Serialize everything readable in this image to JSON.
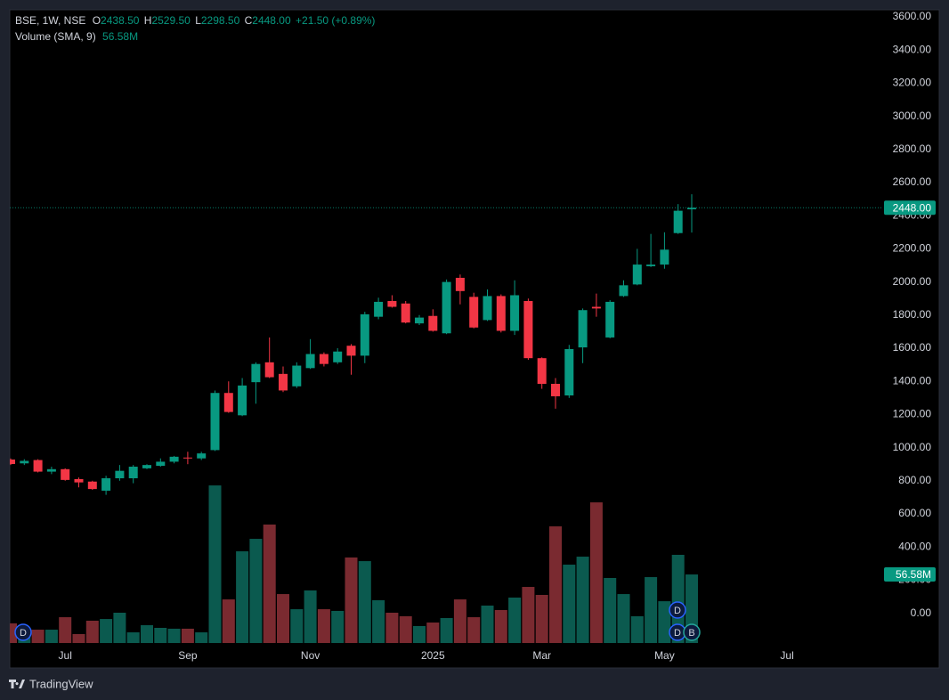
{
  "chart_data": {
    "type": "candlestick",
    "header": {
      "symbol": "BSE, 1W, NSE",
      "o_label": "O",
      "o": "2438.50",
      "h_label": "H",
      "h": "2529.50",
      "l_label": "L",
      "l": "2298.50",
      "c_label": "C",
      "c": "2448.00",
      "change": "+21.50 (+0.89%)"
    },
    "volume_title": "Volume (SMA, 9)",
    "volume_value": "56.58M",
    "last_price_label": "2448.00",
    "categories": [
      null,
      null,
      null,
      null,
      "Jul",
      null,
      null,
      null,
      null,
      null,
      null,
      null,
      null,
      "Sep",
      null,
      null,
      null,
      null,
      null,
      null,
      null,
      null,
      "Nov",
      null,
      null,
      null,
      null,
      null,
      null,
      null,
      null,
      "2025",
      null,
      null,
      null,
      null,
      null,
      null,
      null,
      "Mar",
      null,
      null,
      null,
      null,
      null,
      null,
      null,
      null,
      "May",
      null,
      null,
      null,
      null,
      null,
      null,
      null,
      null,
      "Jul"
    ],
    "open": [
      928,
      905,
      925,
      855,
      870,
      810,
      795,
      740,
      815,
      815,
      875,
      890,
      915,
      940,
      935,
      985,
      1330,
      1195,
      1395,
      1515,
      1445,
      1370,
      1480,
      1565,
      1515,
      1615,
      1555,
      1790,
      1885,
      1870,
      1750,
      1795,
      1690,
      2025,
      1910,
      1770,
      1915,
      1705,
      1885,
      1540,
      1385,
      1315,
      1605,
      1850,
      1665,
      1915,
      1985,
      2095,
      2105,
      2295,
      2438.5,
      null,
      null,
      null,
      null,
      null,
      null,
      null
    ],
    "high": [
      935,
      930,
      930,
      885,
      875,
      820,
      800,
      830,
      895,
      895,
      900,
      935,
      950,
      975,
      975,
      1345,
      1400,
      1420,
      1515,
      1665,
      1490,
      1515,
      1655,
      1575,
      1600,
      1625,
      1820,
      1905,
      1920,
      1885,
      1800,
      1835,
      2015,
      2045,
      1935,
      1955,
      1925,
      2010,
      1900,
      1545,
      1420,
      1620,
      1840,
      1930,
      1890,
      2010,
      2200,
      2290,
      2300,
      2470,
      2529.5,
      null,
      null,
      null,
      null,
      null,
      null,
      null
    ],
    "low": [
      895,
      895,
      850,
      840,
      800,
      760,
      745,
      715,
      800,
      785,
      870,
      885,
      905,
      900,
      925,
      980,
      1210,
      1190,
      1265,
      1420,
      1335,
      1360,
      1475,
      1490,
      1505,
      1440,
      1510,
      1775,
      1845,
      1750,
      1740,
      1700,
      1685,
      1865,
      1720,
      1765,
      1695,
      1680,
      1530,
      1355,
      1235,
      1300,
      1510,
      1790,
      1660,
      1910,
      1980,
      2090,
      2080,
      2290,
      2298.5,
      null,
      null,
      null,
      null,
      null,
      null,
      null
    ],
    "close": [
      901,
      920,
      855,
      870,
      805,
      790,
      750,
      815,
      860,
      885,
      895,
      915,
      945,
      935,
      965,
      1330,
      1215,
      1375,
      1505,
      1425,
      1345,
      1495,
      1565,
      1505,
      1580,
      1555,
      1805,
      1880,
      1850,
      1755,
      1785,
      1705,
      2000,
      1945,
      1725,
      1915,
      1705,
      1920,
      1540,
      1385,
      1310,
      1595,
      1830,
      1840,
      1880,
      1980,
      2105,
      2105,
      2195,
      2430,
      2448,
      null,
      null,
      null,
      null,
      null,
      null,
      null
    ],
    "volume": [
      16.2,
      8.1,
      11.0,
      11.0,
      21.3,
      7.4,
      18.4,
      19.8,
      25.0,
      8.8,
      14.7,
      12.5,
      11.8,
      11.8,
      8.8,
      130.1,
      36.0,
      75.7,
      86.0,
      97.8,
      40.4,
      27.9,
      43.4,
      27.9,
      26.5,
      70.6,
      67.6,
      35.3,
      25.0,
      22.1,
      14.0,
      16.9,
      20.6,
      36.0,
      21.3,
      30.9,
      27.2,
      37.5,
      46.3,
      39.7,
      96.3,
      64.7,
      71.3,
      116.1,
      53.7,
      40.4,
      22.1,
      54.4,
      34.5,
      72.8,
      56.58,
      null,
      null,
      null,
      null,
      null,
      null,
      null
    ],
    "up_color": "#089981",
    "down_color": "#f23645",
    "volume_up_color": "#0b5a4f",
    "volume_down_color": "#7a2a30",
    "ylim": [
      -330,
      3643
    ],
    "yticks": [
      {
        "value": 0,
        "label": "0.00"
      },
      {
        "value": 200,
        "label": "200.00"
      },
      {
        "value": 400,
        "label": "400.00"
      },
      {
        "value": 600,
        "label": "600.00"
      },
      {
        "value": 800,
        "label": "800.00"
      },
      {
        "value": 1000,
        "label": "1000.00"
      },
      {
        "value": 1200,
        "label": "1200.00"
      },
      {
        "value": 1400,
        "label": "1400.00"
      },
      {
        "value": 1600,
        "label": "1600.00"
      },
      {
        "value": 1800,
        "label": "1800.00"
      },
      {
        "value": 2000,
        "label": "2000.00"
      },
      {
        "value": 2200,
        "label": "2200.00"
      },
      {
        "value": 2400,
        "label": "2400.00"
      },
      {
        "value": 2600,
        "label": "2600.00"
      },
      {
        "value": 2800,
        "label": "2800.00"
      },
      {
        "value": 3000,
        "label": "3000.00"
      },
      {
        "value": 3200,
        "label": "3200.00"
      },
      {
        "value": 3400,
        "label": "3400.00"
      },
      {
        "value": 3600,
        "label": "3600.00"
      }
    ],
    "event_markers": [
      "D",
      "D",
      "D",
      "B"
    ],
    "brand": "TradingView"
  }
}
